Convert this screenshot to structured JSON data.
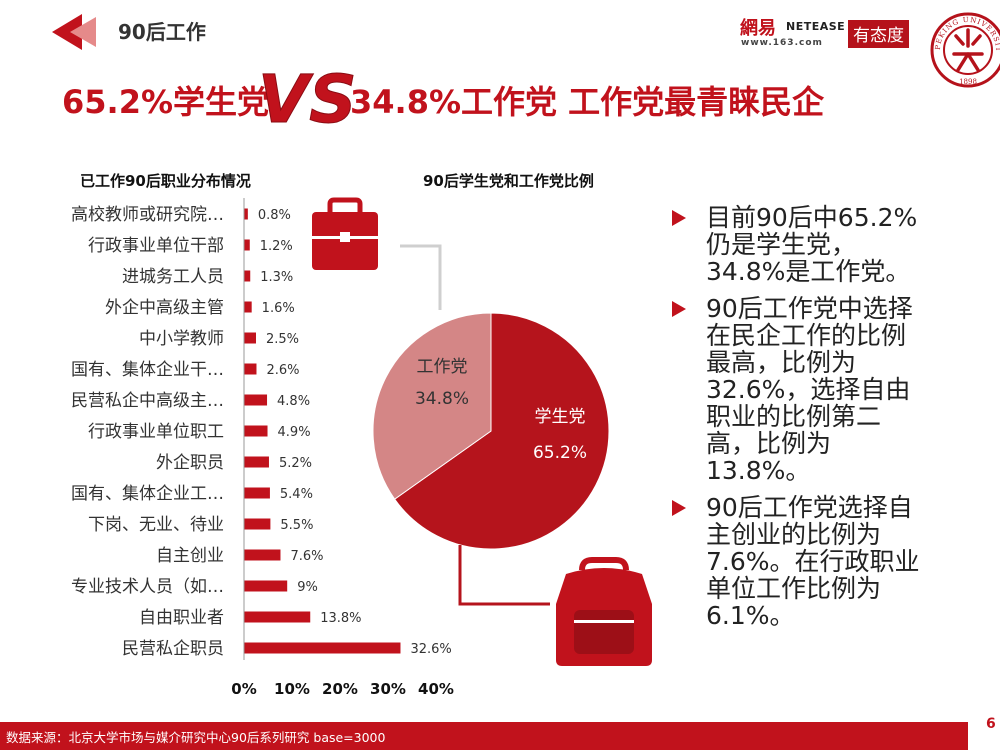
{
  "header": {
    "section_label": "90后工作",
    "logo": {
      "brand": "網易",
      "latin": "NETEASE",
      "url": "www.163.com",
      "tag": "有态度"
    },
    "seal": {
      "ring_text": "PEKING UNIVERSITY",
      "year": "1898"
    },
    "arrow_color": "#c1121c"
  },
  "title": {
    "left": "65.2%学生党",
    "vs": "VS",
    "right": "34.8%工作党  工作党最青睐民企"
  },
  "chart_data": [
    {
      "type": "bar",
      "orientation": "horizontal",
      "title": "已工作90后职业分布情况",
      "categories": [
        "高校教师或研究院…",
        "行政事业单位干部",
        "进城务工人员",
        "外企中高级主管",
        "中小学教师",
        "国有、集体企业干…",
        "民营私企中高级主…",
        "行政事业单位职工",
        "外企职员",
        "国有、集体企业工…",
        "下岗、无业、待业",
        "自主创业",
        "专业技术人员（如…",
        "自由职业者",
        "民营私企职员"
      ],
      "values": [
        0.8,
        1.2,
        1.3,
        1.6,
        2.5,
        2.6,
        4.8,
        4.9,
        5.2,
        5.4,
        5.5,
        7.6,
        9,
        13.8,
        32.6
      ],
      "value_labels": [
        "0.8%",
        "1.2%",
        "1.3%",
        "1.6%",
        "2.5%",
        "2.6%",
        "4.8%",
        "4.9%",
        "5.2%",
        "5.4%",
        "5.5%",
        "7.6%",
        "9%",
        "13.8%",
        "32.6%"
      ],
      "xlim": [
        0,
        40
      ],
      "xticks": [
        "0%",
        "10%",
        "20%",
        "30%",
        "40%"
      ],
      "bar_color": "#c1121c",
      "grid": false
    },
    {
      "type": "pie",
      "title": "90后学生党和工作党比例",
      "slices": [
        {
          "label": "学生党",
          "value": 65.2,
          "value_label": "65.2%",
          "color": "#b5141c"
        },
        {
          "label": "工作党",
          "value": 34.8,
          "value_label": "34.8%",
          "color": "#d48686"
        }
      ],
      "icons": [
        "briefcase-icon",
        "backpack-icon"
      ],
      "icon_color": "#c1121c"
    }
  ],
  "bullets": [
    "目前90后中65.2%仍是学生党，34.8%是工作党。",
    "90后工作党中选择在民企工作的比例最高，比例为32.6%，选择自由职业的比例第二高，比例为13.8%。",
    "90后工作党选择自主创业的比例为7.6%。在行政职业单位工作比例为6.1%。"
  ],
  "footer": {
    "source": "数据来源：北京大学市场与媒介研究中心90后系列研究 base=3000",
    "page_number": "6"
  }
}
